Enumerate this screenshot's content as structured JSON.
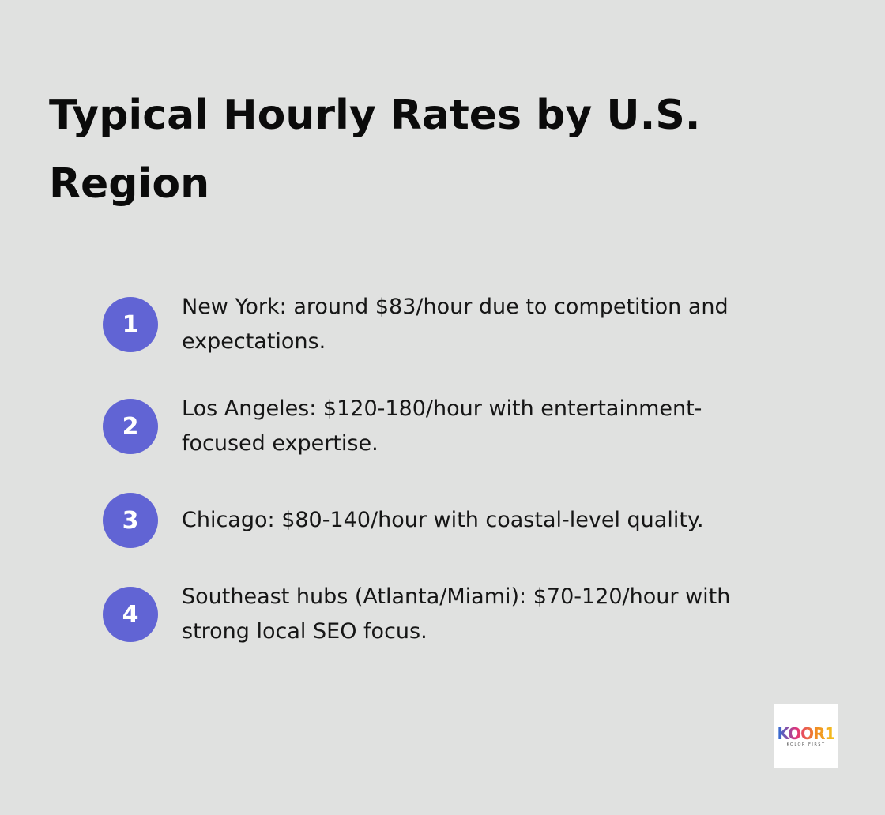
{
  "header": {
    "title": [
      "Typical Hourly Rates by U.S.",
      "Region"
    ]
  },
  "items": [
    {
      "number": "1",
      "lines": [
        "New York: around $83/hour due to competition and",
        "expectations."
      ]
    },
    {
      "number": "2",
      "lines": [
        "Los Angeles: $120-180/hour with entertainment-",
        "focused expertise."
      ]
    },
    {
      "number": "3",
      "lines": [
        "Chicago: $80-140/hour with coastal-level quality."
      ]
    },
    {
      "number": "4",
      "lines": [
        "Southeast hubs (Atlanta/Miami): $70-120/hour with",
        "strong local SEO focus."
      ]
    }
  ],
  "logo": {
    "mark": "KOOR1",
    "tagline": "KOLOR FIRST"
  }
}
